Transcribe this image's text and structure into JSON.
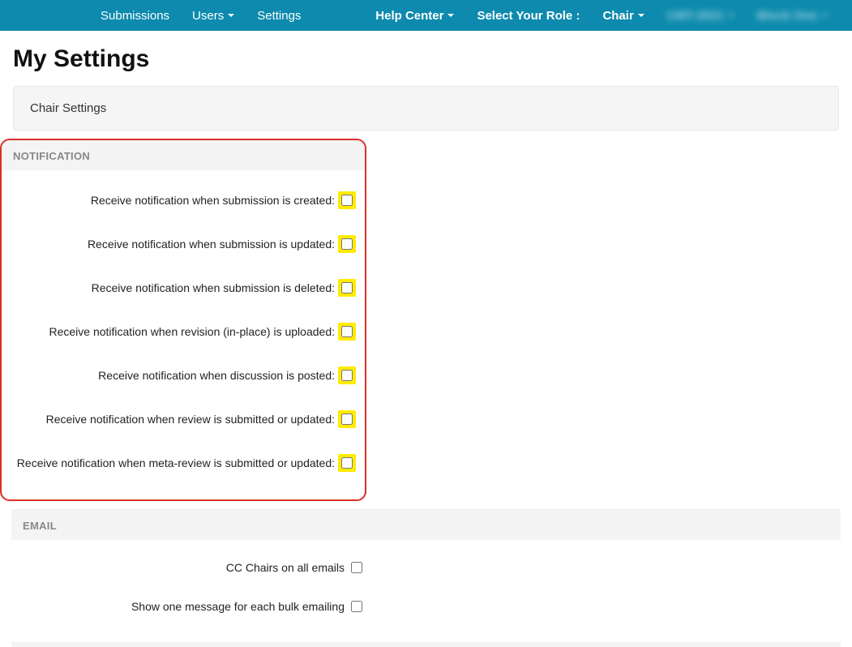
{
  "navbar": {
    "left": [
      {
        "label": "Submissions",
        "hasCaret": false
      },
      {
        "label": "Users",
        "hasCaret": true
      },
      {
        "label": "Settings",
        "hasCaret": false
      }
    ],
    "right": {
      "helpCenter": "Help Center",
      "roleLabel": "Select Your Role :",
      "roleValue": "Chair",
      "blur1": "CMT-2021",
      "blur2": "Block One"
    }
  },
  "pageTitle": "My Settings",
  "panelHeader": "Chair Settings",
  "sections": {
    "notification": {
      "header": "NOTIFICATION",
      "items": [
        "Receive notification when submission is created:",
        "Receive notification when submission is updated:",
        "Receive notification when submission is deleted:",
        "Receive notification when revision (in-place) is uploaded:",
        "Receive notification when discussion is posted:",
        "Receive notification when review is submitted or updated:",
        "Receive notification when meta-review is submitted or updated:"
      ]
    },
    "email": {
      "header": "EMAIL",
      "items": [
        "CC Chairs on all emails",
        "Show one message for each bulk emailing"
      ]
    }
  }
}
